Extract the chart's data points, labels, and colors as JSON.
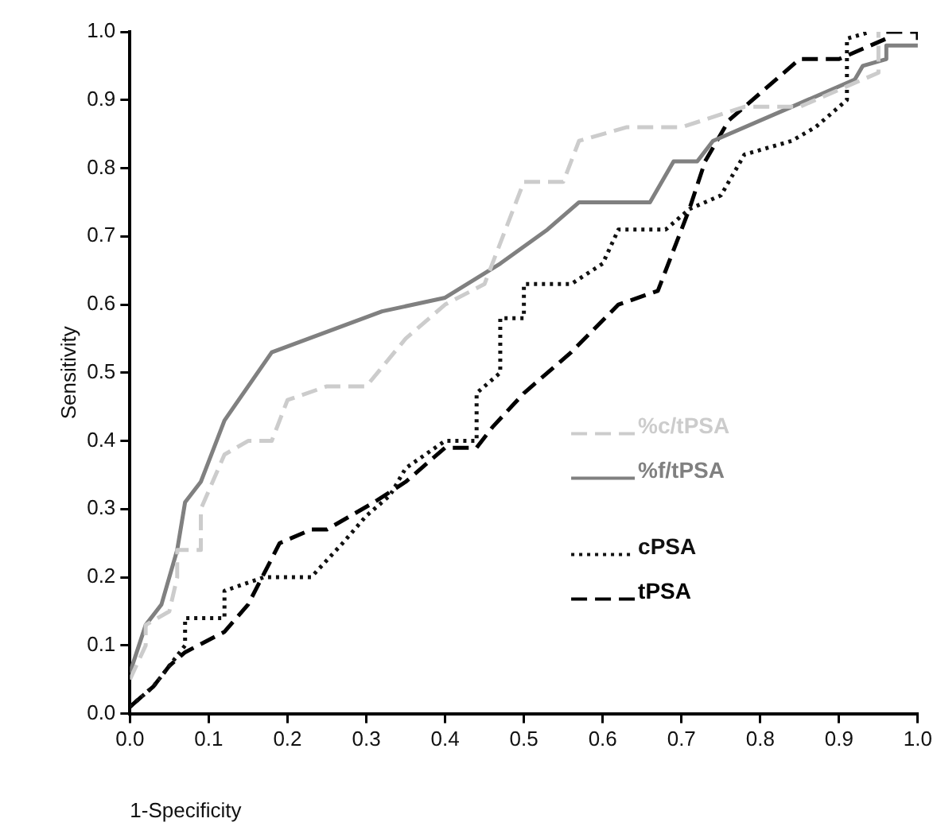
{
  "chart_data": {
    "type": "line",
    "xlabel": "1-Specificity",
    "ylabel": "Sensitivity",
    "xlim": [
      0,
      1
    ],
    "ylim": [
      0,
      1
    ],
    "xticks": [
      {
        "value": 0,
        "label": "0.0"
      },
      {
        "value": 0.1,
        "label": "0.1"
      },
      {
        "value": 0.2,
        "label": "0.2"
      },
      {
        "value": 0.3,
        "label": "0.3"
      },
      {
        "value": 0.4,
        "label": "0.4"
      },
      {
        "value": 0.5,
        "label": "0.5"
      },
      {
        "value": 0.6,
        "label": "0.6"
      },
      {
        "value": 0.7,
        "label": "0.7"
      },
      {
        "value": 0.8,
        "label": "0.8"
      },
      {
        "value": 0.9,
        "label": "0.9"
      },
      {
        "value": 1,
        "label": "1.0"
      }
    ],
    "yticks": [
      {
        "value": 0,
        "label": "0.0"
      },
      {
        "value": 0.1,
        "label": "0.1"
      },
      {
        "value": 0.2,
        "label": "0.2"
      },
      {
        "value": 0.3,
        "label": "0.3"
      },
      {
        "value": 0.4,
        "label": "0.4"
      },
      {
        "value": 0.5,
        "label": "0.5"
      },
      {
        "value": 0.6,
        "label": "0.6"
      },
      {
        "value": 0.7,
        "label": "0.7"
      },
      {
        "value": 0.8,
        "label": "0.8"
      },
      {
        "value": 0.9,
        "label": "0.9"
      },
      {
        "value": 1,
        "label": "1.0"
      }
    ],
    "grid": false,
    "legend": "right",
    "marker": "none",
    "series": [
      {
        "name": "%c/tPSA",
        "color": "#cccccc",
        "line_style": "dashed",
        "x": [
          0,
          0.02,
          0.02,
          0.05,
          0.06,
          0.06,
          0.09,
          0.09,
          0.12,
          0.15,
          0.18,
          0.2,
          0.25,
          0.3,
          0.35,
          0.4,
          0.45,
          0.5,
          0.55,
          0.57,
          0.63,
          0.7,
          0.78,
          0.85,
          0.95,
          0.95
        ],
        "values": [
          0.05,
          0.1,
          0.13,
          0.15,
          0.2,
          0.24,
          0.24,
          0.3,
          0.38,
          0.4,
          0.4,
          0.46,
          0.48,
          0.48,
          0.55,
          0.6,
          0.63,
          0.78,
          0.78,
          0.84,
          0.86,
          0.86,
          0.89,
          0.89,
          0.94,
          1
        ]
      },
      {
        "name": "%f/tPSA",
        "color": "#808080",
        "line_style": "solid",
        "x": [
          0,
          0.02,
          0.04,
          0.06,
          0.07,
          0.09,
          0.12,
          0.18,
          0.32,
          0.4,
          0.47,
          0.53,
          0.57,
          0.66,
          0.69,
          0.72,
          0.74,
          0.84,
          0.92,
          0.93,
          0.96,
          0.96,
          1
        ],
        "values": [
          0.06,
          0.13,
          0.16,
          0.24,
          0.31,
          0.34,
          0.43,
          0.53,
          0.59,
          0.61,
          0.66,
          0.71,
          0.75,
          0.75,
          0.81,
          0.81,
          0.84,
          0.89,
          0.93,
          0.95,
          0.96,
          0.98,
          0.98
        ]
      },
      {
        "name": "cPSA",
        "color": "#111111",
        "line_style": "dotted",
        "x": [
          0,
          0.03,
          0.05,
          0.07,
          0.07,
          0.12,
          0.12,
          0.17,
          0.23,
          0.27,
          0.3,
          0.33,
          0.35,
          0.4,
          0.44,
          0.44,
          0.47,
          0.47,
          0.5,
          0.5,
          0.56,
          0.6,
          0.62,
          0.68,
          0.71,
          0.75,
          0.78,
          0.84,
          0.87,
          0.91,
          0.91,
          0.94
        ],
        "values": [
          0.01,
          0.04,
          0.07,
          0.1,
          0.14,
          0.14,
          0.18,
          0.2,
          0.2,
          0.25,
          0.29,
          0.32,
          0.36,
          0.4,
          0.4,
          0.47,
          0.5,
          0.58,
          0.58,
          0.63,
          0.63,
          0.66,
          0.71,
          0.71,
          0.74,
          0.76,
          0.82,
          0.84,
          0.86,
          0.9,
          0.99,
          1
        ]
      },
      {
        "name": "tPSA",
        "color": "#000000",
        "line_style": "dashed",
        "x": [
          0,
          0.03,
          0.05,
          0.07,
          0.12,
          0.15,
          0.19,
          0.23,
          0.25,
          0.28,
          0.31,
          0.35,
          0.4,
          0.44,
          0.46,
          0.5,
          0.56,
          0.62,
          0.67,
          0.71,
          0.73,
          0.76,
          0.85,
          0.9,
          0.96,
          0.96,
          1,
          1
        ],
        "values": [
          0.01,
          0.04,
          0.07,
          0.09,
          0.12,
          0.16,
          0.25,
          0.27,
          0.27,
          0.29,
          0.31,
          0.34,
          0.39,
          0.39,
          0.42,
          0.47,
          0.53,
          0.6,
          0.62,
          0.74,
          0.81,
          0.87,
          0.96,
          0.96,
          0.99,
          1,
          1,
          0.98
        ]
      }
    ]
  }
}
